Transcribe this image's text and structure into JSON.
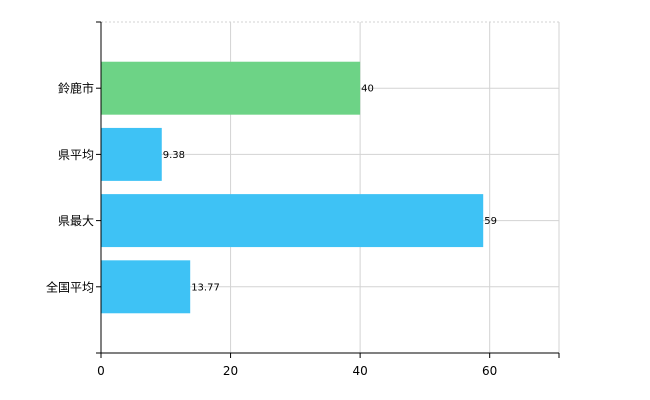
{
  "chart_data": {
    "type": "bar",
    "orientation": "horizontal",
    "categories": [
      "鈴鹿市",
      "県平均",
      "県最大",
      "全国平均"
    ],
    "values": [
      40,
      9.38,
      59,
      13.77
    ],
    "value_labels": [
      "40",
      "9.38",
      "59",
      "13.77"
    ],
    "bar_colors": [
      "#6dd386",
      "#3ec2f5",
      "#3ec2f5",
      "#3ec2f5"
    ],
    "title": "",
    "xlabel": "",
    "ylabel": "",
    "xlim": [
      0,
      70.7
    ],
    "x_ticks": [
      0,
      20,
      40,
      60
    ],
    "x_tick_labels": [
      "0",
      "20",
      "40",
      "60"
    ],
    "grid": true,
    "legend": "none"
  },
  "colors": {
    "highlight": "#6dd386",
    "default": "#3ec2f5",
    "grid": "#d3d3d3",
    "axis": "#000000"
  }
}
